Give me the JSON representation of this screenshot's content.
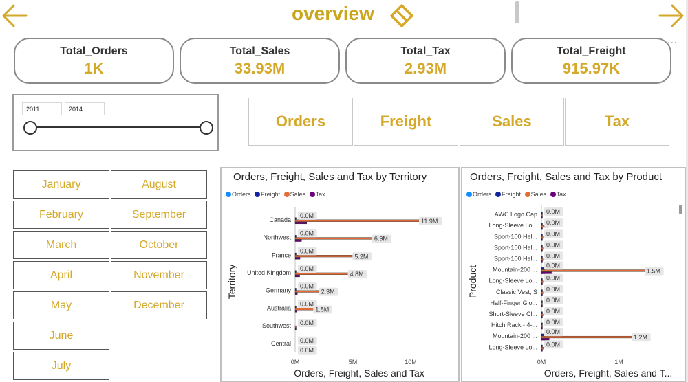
{
  "header": {
    "title": "overview",
    "accent": "#d4a92a",
    "back_icon": "arrow-left-icon",
    "forward_icon": "arrow-right-icon",
    "clear_icon": "eraser-icon",
    "more_label": "..."
  },
  "kpis": [
    {
      "label": "Total_Orders",
      "value": "1K"
    },
    {
      "label": "Total_Sales",
      "value": "33.93M"
    },
    {
      "label": "Total_Tax",
      "value": "2.93M"
    },
    {
      "label": "Total_Freight",
      "value": "915.97K"
    }
  ],
  "year_slicer": {
    "start": "2011",
    "end": "2014"
  },
  "measure_buttons": [
    "Orders",
    "Freight",
    "Sales",
    "Tax"
  ],
  "months": [
    "January",
    "February",
    "March",
    "April",
    "May",
    "June",
    "July",
    "August",
    "September",
    "October",
    "November",
    "December"
  ],
  "charts": {
    "territory": {
      "title": "Orders, Freight, Sales and Tax by Territory",
      "ylabel": "Territory",
      "xlabel": "Orders, Freight, Sales and Tax"
    },
    "product": {
      "title": "Orders, Freight, Sales and Tax by Product",
      "ylabel": "Product",
      "xlabel": "Orders, Freight, Sales and T..."
    }
  },
  "legend": [
    {
      "name": "Orders",
      "color": "#118dff"
    },
    {
      "name": "Freight",
      "color": "#12239e"
    },
    {
      "name": "Sales",
      "color": "#e66c37"
    },
    {
      "name": "Tax",
      "color": "#6b007b"
    }
  ],
  "chart_data": [
    {
      "type": "bar",
      "orientation": "horizontal",
      "title": "Orders, Freight, Sales and Tax by Territory",
      "xlabel": "Orders, Freight, Sales and Tax",
      "ylabel": "Territory",
      "categories": [
        "Canada",
        "Northwest",
        "France",
        "United Kingdom",
        "Germany",
        "Australia",
        "Southwest",
        "Central"
      ],
      "series": [
        {
          "name": "Orders",
          "values": [
            0,
            0,
            0,
            0,
            0,
            0,
            0,
            0
          ]
        },
        {
          "name": "Freight",
          "values": [
            0.06,
            0.06,
            0.06,
            0.06,
            0.06,
            0.06,
            0,
            0
          ]
        },
        {
          "name": "Sales",
          "values": [
            11.9,
            6.9,
            5.2,
            4.8,
            2.3,
            1.8,
            0.05,
            0
          ]
        },
        {
          "name": "Tax",
          "values": [
            1.0,
            0.55,
            0.42,
            0.39,
            0.19,
            0.15,
            0.01,
            0
          ]
        }
      ],
      "data_labels": [
        {
          "category": "Canada",
          "labels": [
            "0.0M",
            "11.9M"
          ]
        },
        {
          "category": "Northwest",
          "labels": [
            "0.0M",
            "6.9M"
          ]
        },
        {
          "category": "France",
          "labels": [
            "0.0M",
            "5.2M"
          ]
        },
        {
          "category": "United Kingdom",
          "labels": [
            "0.0M",
            "4.8M"
          ]
        },
        {
          "category": "Germany",
          "labels": [
            "0.0M",
            "2.3M"
          ]
        },
        {
          "category": "Australia",
          "labels": [
            "0.0M",
            "1.8M"
          ]
        },
        {
          "category": "Southwest",
          "labels": [
            "0.0M"
          ]
        },
        {
          "category": "Central",
          "labels": [
            "0.0M",
            "0.0M"
          ]
        }
      ],
      "xticks": [
        "0M",
        "5M",
        "10M"
      ],
      "xlim": [
        0,
        12.5
      ],
      "unit": "M",
      "grid": false,
      "legend_position": "top-left"
    },
    {
      "type": "bar",
      "orientation": "horizontal",
      "title": "Orders, Freight, Sales and Tax by Product",
      "xlabel": "Orders, Freight, Sales and T...",
      "ylabel": "Product",
      "categories": [
        "AWC Logo Cap",
        "Long-Sleeve Lo...",
        "Sport-100 Hel...",
        "Sport-100 Hel...",
        "Sport-100 Hel...",
        "Mountain-200 ...",
        "Long-Sleeve Lo...",
        "Classic Vest, S",
        "Half-Finger Glo...",
        "Short-Sleeve Cl...",
        "Hitch Rack - 4-...",
        "Mountain-200 ...",
        "Long-Sleeve Lo..."
      ],
      "series": [
        {
          "name": "Orders",
          "values": [
            0,
            0,
            0,
            0,
            0,
            0,
            0,
            0,
            0,
            0,
            0,
            0,
            0
          ]
        },
        {
          "name": "Freight",
          "values": [
            0.004,
            0.006,
            0.005,
            0.005,
            0.005,
            0.04,
            0.005,
            0.004,
            0.003,
            0.004,
            0.002,
            0.03,
            0.004
          ]
        },
        {
          "name": "Sales",
          "values": [
            0.01,
            0.09,
            0.02,
            0.02,
            0.02,
            1.5,
            0.02,
            0.02,
            0.01,
            0.02,
            0.01,
            1.2,
            0.03
          ]
        },
        {
          "name": "Tax",
          "values": [
            0.001,
            0.008,
            0.002,
            0.002,
            0.002,
            0.13,
            0.002,
            0.002,
            0.001,
            0.002,
            0.001,
            0.1,
            0.002
          ]
        }
      ],
      "data_labels": [
        {
          "category": "AWC Logo Cap",
          "labels": [
            "0.0M"
          ]
        },
        {
          "category": "Long-Sleeve Lo...",
          "labels": [
            "0.0M"
          ]
        },
        {
          "category": "Sport-100 Hel...",
          "labels": [
            "0.0M"
          ]
        },
        {
          "category": "Sport-100 Hel...",
          "labels": [
            "0.0M"
          ]
        },
        {
          "category": "Sport-100 Hel...",
          "labels": [
            "0.0M"
          ]
        },
        {
          "category": "Mountain-200 ...",
          "labels": [
            "0.0M",
            "1.5M"
          ]
        },
        {
          "category": "Long-Sleeve Lo...",
          "labels": [
            "0.0M"
          ]
        },
        {
          "category": "Classic Vest, S",
          "labels": [
            "0.0M"
          ]
        },
        {
          "category": "Half-Finger Glo...",
          "labels": [
            "0.0M"
          ]
        },
        {
          "category": "Short-Sleeve Cl...",
          "labels": [
            "0.0M"
          ]
        },
        {
          "category": "Hitch Rack - 4-...",
          "labels": [
            "0.0M"
          ]
        },
        {
          "category": "Mountain-200 ...",
          "labels": [
            "0.0M",
            "1.2M"
          ]
        },
        {
          "category": "Long-Sleeve Lo...",
          "labels": [
            "0.0M"
          ]
        }
      ],
      "xticks": [
        "0M",
        "1M"
      ],
      "xlim": [
        0,
        1.6
      ],
      "unit": "M",
      "grid": false,
      "legend_position": "top-left"
    }
  ]
}
